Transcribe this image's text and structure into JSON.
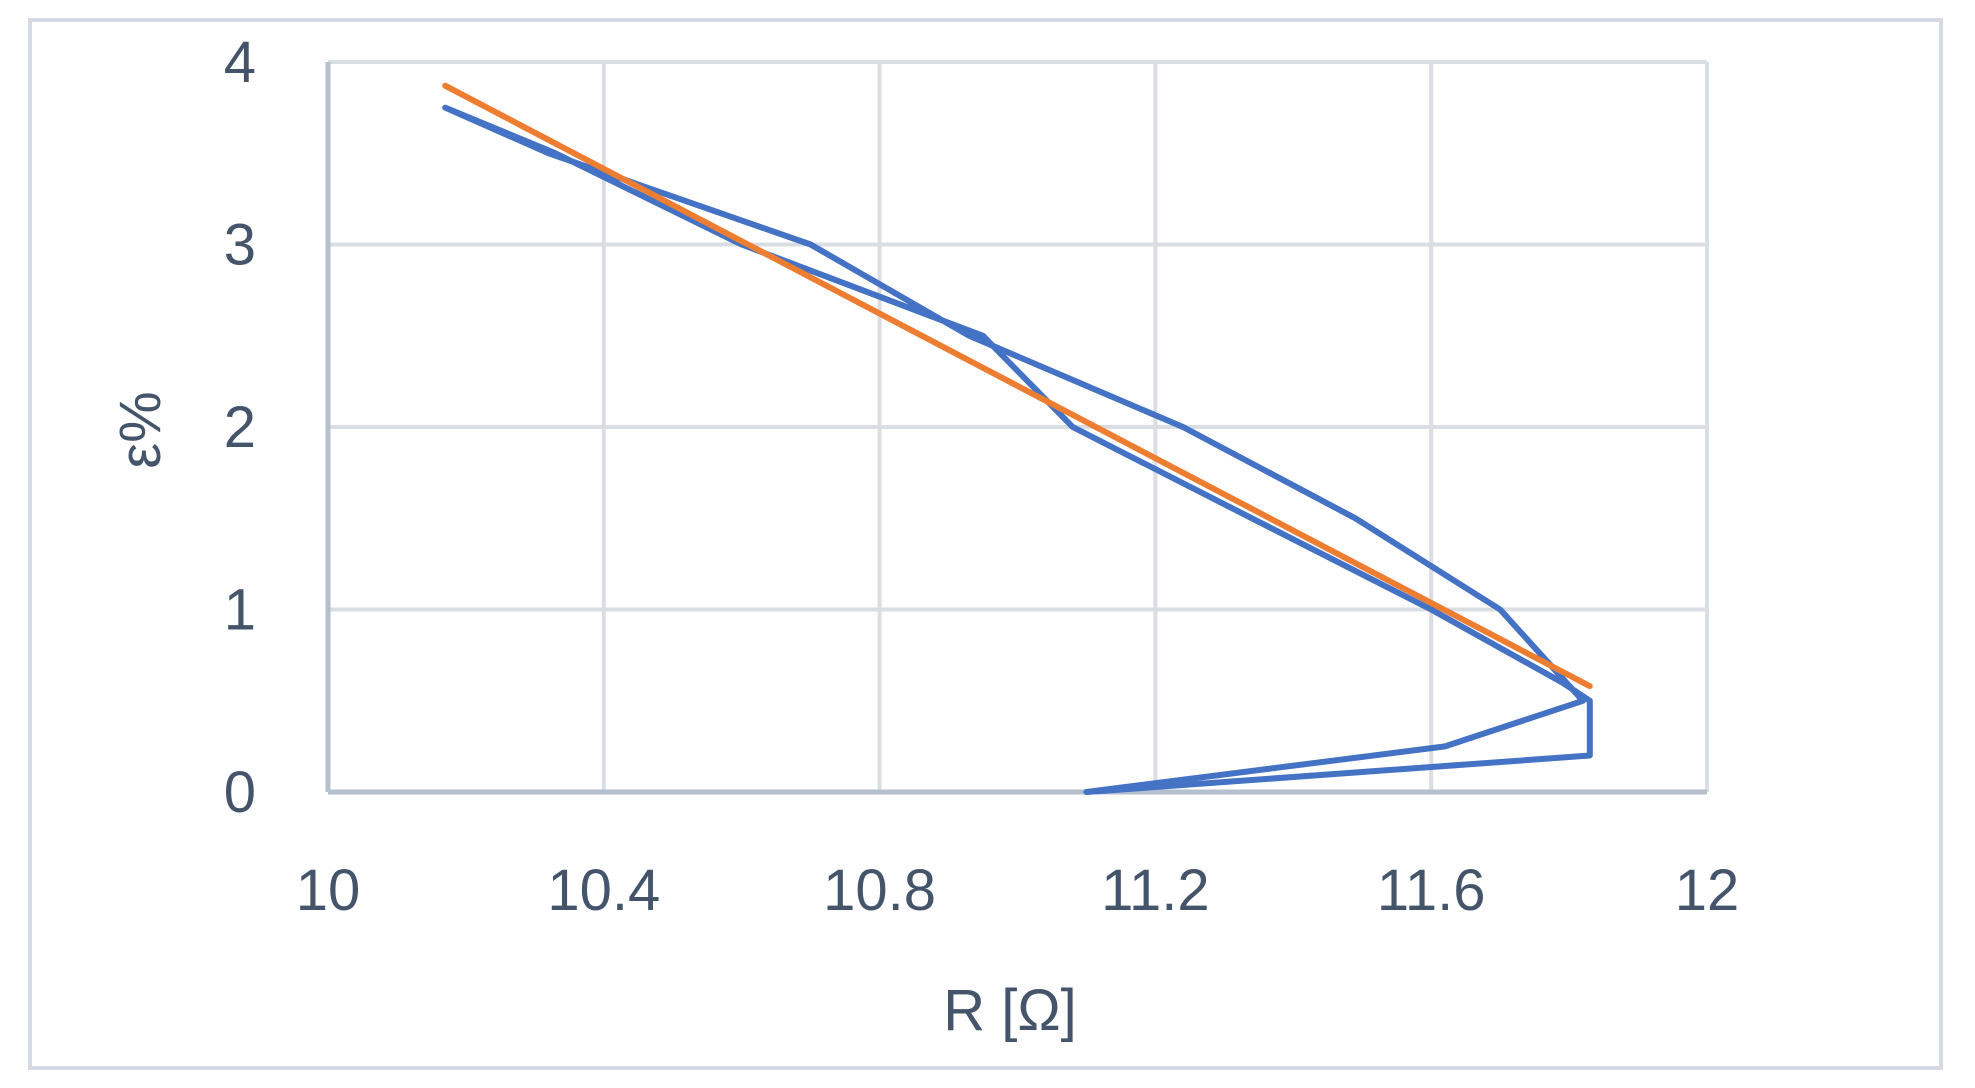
{
  "chart_data": {
    "type": "line",
    "title": "",
    "xlabel": "R [Ω]",
    "ylabel": "ε%",
    "xlim": [
      10,
      12
    ],
    "ylim": [
      0,
      4
    ],
    "x_ticks": [
      "10",
      "10.4",
      "10.8",
      "11.2",
      "11.6",
      "12"
    ],
    "y_ticks": [
      "0",
      "1",
      "2",
      "3",
      "4"
    ],
    "grid": true,
    "legend": "none",
    "colors": {
      "series": "#4472c4",
      "trend": "#ed7d31",
      "grid": "#d9dde4",
      "axis": "#b4bfcf",
      "text": "#44546a"
    },
    "series": [
      {
        "x": [
          11.1,
          11.62,
          11.82,
          11.7,
          11.49,
          11.24,
          10.93,
          10.7,
          10.32,
          10.17,
          10.33,
          10.6,
          10.95,
          11.08,
          11.34,
          11.6,
          11.79,
          11.83,
          11.83,
          11.83,
          11.1
        ],
        "y": [
          0.0,
          0.25,
          0.5,
          1.0,
          1.5,
          2.0,
          2.5,
          3.0,
          3.5,
          3.75,
          3.5,
          3.0,
          2.5,
          2.0,
          1.5,
          1.0,
          0.6,
          0.5,
          0.4,
          0.2,
          0.0
        ]
      },
      {
        "x": [
          10.17,
          11.83
        ],
        "y": [
          3.87,
          0.58
        ]
      }
    ]
  }
}
